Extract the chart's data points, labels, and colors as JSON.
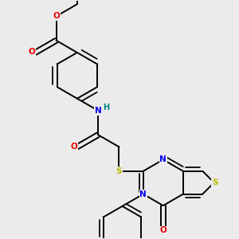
{
  "background_color": "#ebebeb",
  "figsize": [
    3.0,
    3.0
  ],
  "dpi": 100,
  "atom_colors": {
    "C": "#000000",
    "N": "#0000ee",
    "O": "#ee0000",
    "S": "#bbbb00",
    "H": "#008080"
  },
  "bond_color": "#000000",
  "bond_width": 1.4,
  "font_size": 7.5
}
